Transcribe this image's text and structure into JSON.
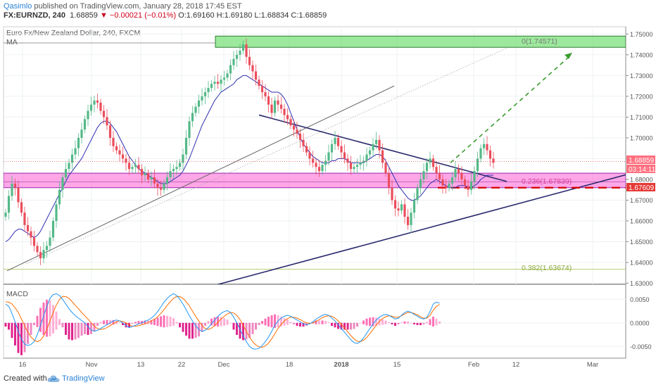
{
  "header": {
    "author": "Qasimlo",
    "published_text": "published on TradingView.com, January 28, 2018 17:45 EST",
    "symbol_line": "FX:EURNZD, 240",
    "last": "1.68859",
    "change": "▼ −0.00021 (−0.01%)",
    "ohlc": "O:1.69160 H:1.69180 L:1.68834 C:1.68859"
  },
  "legend": {
    "title": "Euro Fx/New Zealand Dollar, 240, FXCM",
    "ma": "MA",
    "macd": "MACD"
  },
  "footer": {
    "created_with": "Created with",
    "brand": "TradingView"
  },
  "colors": {
    "bull": "#53b987",
    "bear": "#eb4d5c",
    "ma": "#2f2fb0",
    "macd": "#2196f3",
    "signal": "#ff6d00",
    "hist_pos": "#ff6fb5",
    "hist_neg": "#e0248d",
    "trend": "#2a2a6e",
    "zone_fill": "#ff5fd3",
    "target_fill": "#7be07b",
    "target_arrow": "#3a9b2e",
    "support_dash": "#d50000",
    "fib": "#9bbd3a",
    "fib_label_pink": "#d63c9b",
    "fib_label_green": "#8aa83a"
  },
  "chart_data": [
    {
      "type": "line",
      "panel": "price",
      "scale_label_rate": "1.68859",
      "scale_label_time": "03:14:11",
      "scale_label_level": "1.67609",
      "ylim": [
        1.6295,
        1.7535
      ],
      "y_ticks": [
        "1.75000",
        "1.74000",
        "1.73000",
        "1.72000",
        "1.71000",
        "1.70000",
        "1.69000",
        "1.68000",
        "1.67000",
        "1.66000",
        "1.65000",
        "1.64000",
        "1.63000"
      ],
      "x_ticks": [
        "16",
        "Nov",
        "13",
        "22",
        "Dec",
        "18",
        "2018",
        "15",
        "Feb",
        "12",
        "Mar"
      ],
      "series": [
        {
          "values": [
            1.664,
            1.672,
            1.678,
            1.676,
            1.669,
            1.664,
            1.658,
            1.655,
            1.652,
            1.648,
            1.645,
            1.642,
            1.646,
            1.648,
            1.652,
            1.66,
            1.668,
            1.675,
            1.681,
            1.685,
            1.688,
            1.692,
            1.695,
            1.7,
            1.704,
            1.709,
            1.713,
            1.716,
            1.718,
            1.717,
            1.713,
            1.71,
            1.706,
            1.7,
            1.696,
            1.694,
            1.692,
            1.69,
            1.688,
            1.685,
            1.686,
            1.687,
            1.685,
            1.682,
            1.683,
            1.68,
            1.681,
            1.678,
            1.676,
            1.675,
            1.678,
            1.681,
            1.684,
            1.685,
            1.686,
            1.688,
            1.692,
            1.7,
            1.708,
            1.712,
            1.715,
            1.718,
            1.72,
            1.722,
            1.724,
            1.726,
            1.727,
            1.726,
            1.728,
            1.729,
            1.731,
            1.735,
            1.738,
            1.74,
            1.742,
            1.745,
            1.739,
            1.735,
            1.732,
            1.728,
            1.725,
            1.722,
            1.72,
            1.716,
            1.712,
            1.718,
            1.716,
            1.714,
            1.711,
            1.709,
            1.706,
            1.704,
            1.702,
            1.699,
            1.696,
            1.693,
            1.69,
            1.688,
            1.686,
            1.684,
            1.687,
            1.689,
            1.693,
            1.697,
            1.7,
            1.696,
            1.693,
            1.69,
            1.688,
            1.685,
            1.686,
            1.687,
            1.688,
            1.689,
            1.692,
            1.694,
            1.697,
            1.699,
            1.694,
            1.688,
            1.683,
            1.676,
            1.67,
            1.666,
            1.665,
            1.668,
            1.662,
            1.658,
            1.664,
            1.67,
            1.676,
            1.68,
            1.684,
            1.688,
            1.69,
            1.686,
            1.683,
            1.68,
            1.677,
            1.676,
            1.678,
            1.681,
            1.685,
            1.683,
            1.68,
            1.677,
            1.675,
            1.679,
            1.684,
            1.69,
            1.695,
            1.697,
            1.694,
            1.69,
            1.688
          ]
        },
        {
          "name": "MA",
          "values": [
            1.65,
            1.651,
            1.653,
            1.655,
            1.656,
            1.656,
            1.655,
            1.654,
            1.653,
            1.652,
            1.653,
            1.655,
            1.658,
            1.661,
            1.664,
            1.667,
            1.67,
            1.673,
            1.676,
            1.679,
            1.682,
            1.684,
            1.686,
            1.688,
            1.69,
            1.693,
            1.696,
            1.699,
            1.702,
            1.705,
            1.707,
            1.708,
            1.708,
            1.707,
            1.705,
            1.703,
            1.7,
            1.697,
            1.694,
            1.691,
            1.689,
            1.687,
            1.685,
            1.684,
            1.683,
            1.682,
            1.681,
            1.68,
            1.679,
            1.678,
            1.678,
            1.678,
            1.679,
            1.68,
            1.681,
            1.682,
            1.684,
            1.687,
            1.69,
            1.694,
            1.698,
            1.702,
            1.706,
            1.709,
            1.712,
            1.715,
            1.718,
            1.72,
            1.722,
            1.723,
            1.724,
            1.725,
            1.726,
            1.728,
            1.729,
            1.73,
            1.73,
            1.729,
            1.728,
            1.727,
            1.726,
            1.725,
            1.724,
            1.723,
            1.722,
            1.722,
            1.722,
            1.721,
            1.719,
            1.716,
            1.712,
            1.708,
            1.704,
            1.7,
            1.697,
            1.695,
            1.693,
            1.691,
            1.69,
            1.689,
            1.688,
            1.688,
            1.688,
            1.689,
            1.689,
            1.69,
            1.69,
            1.69,
            1.689,
            1.688,
            1.688,
            1.688,
            1.688,
            1.688,
            1.689,
            1.69,
            1.691,
            1.692,
            1.692,
            1.691,
            1.689,
            1.686,
            1.683,
            1.68,
            1.677,
            1.675,
            1.673,
            1.671,
            1.67,
            1.67,
            1.671,
            1.672,
            1.674,
            1.676,
            1.678,
            1.679,
            1.68,
            1.679,
            1.678,
            1.677,
            1.676,
            1.676,
            1.676,
            1.677,
            1.677,
            1.677,
            1.676,
            1.676,
            1.677,
            1.678,
            1.68,
            1.681,
            1.682,
            1.682,
            1.682
          ]
        }
      ],
      "annotations": [
        {
          "label": "0(1.74571)"
        },
        {
          "label": "0.236(1.67839)"
        },
        {
          "label": "0.382(1.63674)"
        }
      ]
    },
    {
      "type": "bar",
      "panel": "MACD",
      "ylim": [
        -0.0075,
        0.0082
      ],
      "y_ticks": [
        "0.0050",
        "0.0000",
        "-0.0050"
      ],
      "series": [
        {
          "name": "MACD",
          "values": [
            0.004,
            0.0035,
            0.002,
            0.0002,
            -0.0018,
            -0.0035,
            -0.0045,
            -0.0048,
            -0.0046,
            -0.004,
            -0.0025,
            -0.0005,
            0.0015,
            0.0035,
            0.0052,
            0.006,
            0.0062,
            0.0058,
            0.005,
            0.004,
            0.003,
            0.0022,
            0.0015,
            0.001,
            0.0005,
            0.0,
            -0.0008,
            -0.0015,
            -0.0018,
            -0.0016,
            -0.0012,
            -0.0008,
            -0.0004,
            0.0,
            0.0004,
            0.0006,
            0.0004,
            0.0,
            -0.0006,
            -0.001,
            -0.0008,
            -0.0005,
            -0.0002,
            0.0,
            0.0003,
            0.0006,
            0.001,
            0.0016,
            0.0024,
            0.0034,
            0.0044,
            0.0052,
            0.0058,
            0.0062,
            0.0058,
            0.005,
            0.004,
            0.0028,
            0.0015,
            0.0004,
            -0.0006,
            -0.0014,
            -0.0018,
            -0.0016,
            -0.001,
            -0.0002,
            0.0006,
            0.0014,
            0.002,
            0.0024,
            0.0026,
            0.0022,
            0.0012,
            0.0,
            -0.0014,
            -0.0028,
            -0.004,
            -0.005,
            -0.0055,
            -0.0056,
            -0.0054,
            -0.0048,
            -0.004,
            -0.003,
            -0.0018,
            -0.0005,
            0.0004,
            0.001,
            0.0014,
            0.0016,
            0.0014,
            0.001,
            0.0006,
            0.0002,
            -0.0002,
            -0.0004,
            -0.0002,
            0.0002,
            0.0008,
            0.0012,
            0.0016,
            0.0018,
            0.0016,
            0.001,
            0.0004,
            -0.0004,
            -0.0012,
            -0.002,
            -0.0028,
            -0.0036,
            -0.0042,
            -0.0044,
            -0.004,
            -0.0032,
            -0.0022,
            -0.0012,
            -0.0002,
            0.0006,
            0.0012,
            0.0016,
            0.0018,
            0.0016,
            0.0012,
            0.0008,
            0.001,
            0.0016,
            0.0022,
            0.0025,
            0.0022,
            0.0018,
            0.0014,
            0.001,
            0.0008,
            0.0012,
            0.0024,
            0.004,
            0.0044,
            0.0042
          ]
        },
        {
          "name": "Signal",
          "values": [
            0.0045,
            0.0044,
            0.004,
            0.0032,
            0.0022,
            0.0008,
            -0.0006,
            -0.002,
            -0.003,
            -0.0037,
            -0.004,
            -0.0037,
            -0.0028,
            -0.0014,
            0.0004,
            0.0022,
            0.0038,
            0.005,
            0.0056,
            0.0056,
            0.0052,
            0.0045,
            0.0037,
            0.003,
            0.0022,
            0.0015,
            0.0008,
            0.0,
            -0.0007,
            -0.0012,
            -0.0014,
            -0.0013,
            -0.001,
            -0.0006,
            -0.0002,
            0.0002,
            0.0004,
            0.0003,
            0.0,
            -0.0004,
            -0.0007,
            -0.0007,
            -0.0006,
            -0.0004,
            -0.0002,
            0.0001,
            0.0004,
            0.0008,
            0.0013,
            0.002,
            0.0028,
            0.0037,
            0.0045,
            0.0052,
            0.0056,
            0.0056,
            0.0052,
            0.0045,
            0.0036,
            0.0025,
            0.0014,
            0.0004,
            -0.0006,
            -0.0012,
            -0.0014,
            -0.0011,
            -0.0006,
            0.0001,
            0.0008,
            0.0014,
            0.0019,
            0.0022,
            0.0021,
            0.0016,
            0.0007,
            -0.0005,
            -0.0018,
            -0.003,
            -0.004,
            -0.0047,
            -0.0051,
            -0.0052,
            -0.0049,
            -0.0043,
            -0.0034,
            -0.0023,
            -0.0012,
            -0.0003,
            0.0004,
            0.0009,
            0.0012,
            0.0012,
            0.001,
            0.0007,
            0.0003,
            0.0,
            -0.0001,
            0.0,
            0.0003,
            0.0007,
            0.0011,
            0.0014,
            0.0015,
            0.0014,
            0.001,
            0.0004,
            -0.0003,
            -0.0011,
            -0.0019,
            -0.0027,
            -0.0034,
            -0.0039,
            -0.004,
            -0.0037,
            -0.0031,
            -0.0023,
            -0.0014,
            -0.0005,
            0.0003,
            0.0009,
            0.0013,
            0.0015,
            0.0014,
            0.0012,
            0.0012,
            0.0015,
            0.0019,
            0.0022,
            0.0022,
            0.002,
            0.0017,
            0.0013,
            0.001,
            0.001,
            0.0016,
            0.0027,
            0.0035,
            0.0039
          ]
        }
      ]
    }
  ]
}
